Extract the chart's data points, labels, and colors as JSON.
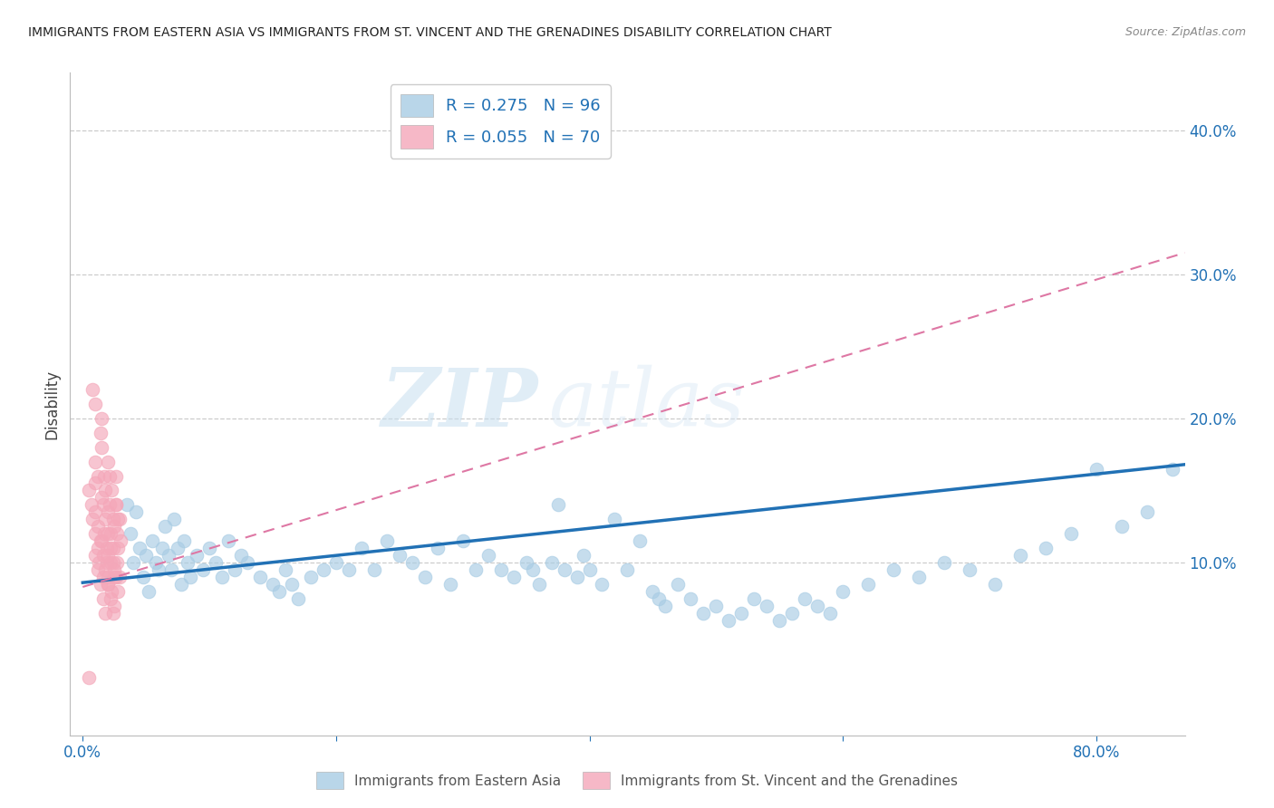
{
  "title": "IMMIGRANTS FROM EASTERN ASIA VS IMMIGRANTS FROM ST. VINCENT AND THE GRENADINES DISABILITY CORRELATION CHART",
  "source": "Source: ZipAtlas.com",
  "ylabel": "Disability",
  "y_ticks": [
    0.1,
    0.2,
    0.3,
    0.4
  ],
  "y_tick_labels": [
    "10.0%",
    "20.0%",
    "30.0%",
    "40.0%"
  ],
  "xlim": [
    -0.01,
    0.87
  ],
  "ylim": [
    -0.02,
    0.44
  ],
  "blue_color": "#a8cce4",
  "pink_color": "#f4a7b9",
  "blue_line_color": "#2171b5",
  "pink_line_color": "#de77a4",
  "legend1_R": "0.275",
  "legend1_N": "96",
  "legend2_R": "0.055",
  "legend2_N": "70",
  "legend_label1": "Immigrants from Eastern Asia",
  "legend_label2": "Immigrants from St. Vincent and the Grenadines",
  "watermark_zip": "ZIP",
  "watermark_atlas": "atlas",
  "blue_scatter_x": [
    0.035,
    0.038,
    0.04,
    0.042,
    0.045,
    0.048,
    0.05,
    0.052,
    0.055,
    0.058,
    0.06,
    0.063,
    0.065,
    0.068,
    0.07,
    0.072,
    0.075,
    0.078,
    0.08,
    0.083,
    0.085,
    0.09,
    0.095,
    0.1,
    0.105,
    0.11,
    0.115,
    0.12,
    0.125,
    0.13,
    0.14,
    0.15,
    0.155,
    0.16,
    0.165,
    0.17,
    0.18,
    0.19,
    0.2,
    0.21,
    0.22,
    0.23,
    0.24,
    0.25,
    0.26,
    0.27,
    0.28,
    0.29,
    0.3,
    0.31,
    0.32,
    0.33,
    0.34,
    0.35,
    0.355,
    0.36,
    0.37,
    0.375,
    0.38,
    0.39,
    0.395,
    0.4,
    0.41,
    0.42,
    0.43,
    0.44,
    0.45,
    0.455,
    0.46,
    0.47,
    0.48,
    0.49,
    0.5,
    0.51,
    0.52,
    0.53,
    0.54,
    0.55,
    0.56,
    0.57,
    0.58,
    0.59,
    0.6,
    0.62,
    0.64,
    0.66,
    0.68,
    0.7,
    0.72,
    0.74,
    0.76,
    0.78,
    0.8,
    0.82,
    0.84,
    0.86
  ],
  "blue_scatter_y": [
    0.14,
    0.12,
    0.1,
    0.135,
    0.11,
    0.09,
    0.105,
    0.08,
    0.115,
    0.1,
    0.095,
    0.11,
    0.125,
    0.105,
    0.095,
    0.13,
    0.11,
    0.085,
    0.115,
    0.1,
    0.09,
    0.105,
    0.095,
    0.11,
    0.1,
    0.09,
    0.115,
    0.095,
    0.105,
    0.1,
    0.09,
    0.085,
    0.08,
    0.095,
    0.085,
    0.075,
    0.09,
    0.095,
    0.1,
    0.095,
    0.11,
    0.095,
    0.115,
    0.105,
    0.1,
    0.09,
    0.11,
    0.085,
    0.115,
    0.095,
    0.105,
    0.095,
    0.09,
    0.1,
    0.095,
    0.085,
    0.1,
    0.14,
    0.095,
    0.09,
    0.105,
    0.095,
    0.085,
    0.13,
    0.095,
    0.115,
    0.08,
    0.075,
    0.07,
    0.085,
    0.075,
    0.065,
    0.07,
    0.06,
    0.065,
    0.075,
    0.07,
    0.06,
    0.065,
    0.075,
    0.07,
    0.065,
    0.08,
    0.085,
    0.095,
    0.09,
    0.1,
    0.095,
    0.085,
    0.105,
    0.11,
    0.12,
    0.165,
    0.125,
    0.135,
    0.165
  ],
  "pink_scatter_x": [
    0.005,
    0.007,
    0.008,
    0.01,
    0.01,
    0.012,
    0.012,
    0.013,
    0.014,
    0.015,
    0.015,
    0.016,
    0.016,
    0.017,
    0.017,
    0.018,
    0.018,
    0.019,
    0.019,
    0.02,
    0.02,
    0.021,
    0.021,
    0.022,
    0.022,
    0.023,
    0.023,
    0.024,
    0.024,
    0.025,
    0.025,
    0.026,
    0.026,
    0.027,
    0.027,
    0.028,
    0.028,
    0.029,
    0.029,
    0.03,
    0.008,
    0.01,
    0.012,
    0.014,
    0.016,
    0.018,
    0.02,
    0.022,
    0.024,
    0.026,
    0.01,
    0.012,
    0.014,
    0.016,
    0.018,
    0.02,
    0.022,
    0.024,
    0.026,
    0.028,
    0.01,
    0.015,
    0.02,
    0.025,
    0.015,
    0.02,
    0.025,
    0.02,
    0.005,
    0.01
  ],
  "pink_scatter_y": [
    0.15,
    0.14,
    0.13,
    0.12,
    0.17,
    0.16,
    0.11,
    0.1,
    0.19,
    0.18,
    0.2,
    0.09,
    0.14,
    0.12,
    0.16,
    0.15,
    0.13,
    0.11,
    0.1,
    0.17,
    0.09,
    0.16,
    0.14,
    0.12,
    0.1,
    0.08,
    0.15,
    0.13,
    0.11,
    0.09,
    0.07,
    0.14,
    0.16,
    0.12,
    0.1,
    0.08,
    0.11,
    0.09,
    0.13,
    0.115,
    0.22,
    0.105,
    0.095,
    0.085,
    0.075,
    0.065,
    0.12,
    0.11,
    0.1,
    0.09,
    0.135,
    0.125,
    0.115,
    0.105,
    0.095,
    0.085,
    0.075,
    0.065,
    0.14,
    0.13,
    0.155,
    0.145,
    0.135,
    0.125,
    0.115,
    0.105,
    0.095,
    0.085,
    0.02,
    0.21
  ]
}
